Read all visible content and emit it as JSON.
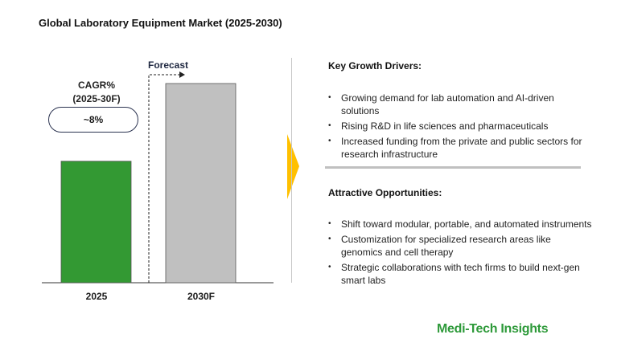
{
  "title": "Global Laboratory Equipment Market (2025-2030)",
  "cagr": {
    "label_line1": "CAGR%",
    "label_line2": "(2025-30F)",
    "value": "~8%"
  },
  "forecast_label": "Forecast",
  "chart_data": {
    "type": "bar",
    "categories": [
      "2025",
      "2030F"
    ],
    "values": [
      61,
      100
    ],
    "colors": [
      "#339933",
      "#c0c0c0"
    ],
    "title": "Global Laboratory Equipment Market (2025-2030)",
    "xlabel": "",
    "ylabel": "",
    "ylim": [
      0,
      100
    ],
    "grid": false,
    "annotations": [
      "Forecast",
      "CAGR% (2025-30F) ~8%"
    ]
  },
  "growth_drivers": {
    "title": "Key Growth Drivers:",
    "items": [
      "Growing demand for lab automation and AI-driven solutions",
      "Rising R&D in life sciences and pharmaceuticals",
      "Increased funding from the private and public sectors for research infrastructure"
    ]
  },
  "opportunities": {
    "title": "Attractive Opportunities:",
    "items": [
      "Shift toward modular, portable, and automated instruments",
      "Customization for specialized research areas like genomics and cell therapy",
      "Strategic collaborations with tech firms to build next-gen smart labs"
    ]
  },
  "brand": "Medi-Tech Insights",
  "colors": {
    "accent_arrow": "#ffc000",
    "brand": "#2e9a3a"
  }
}
